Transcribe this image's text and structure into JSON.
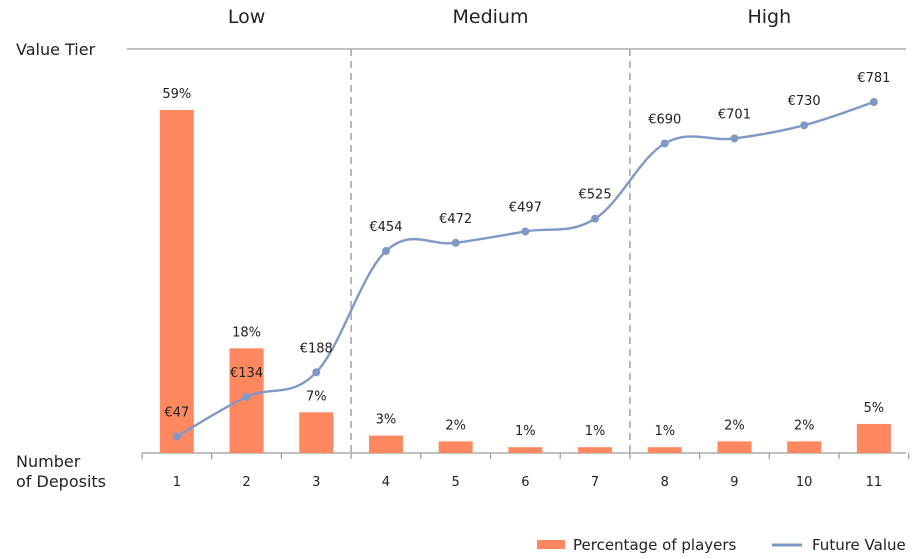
{
  "chart_data": {
    "type": "bar",
    "categories": [
      "1",
      "2",
      "3",
      "4",
      "5",
      "6",
      "7",
      "8",
      "9",
      "10",
      "11"
    ],
    "tiers": [
      {
        "name": "Low",
        "categories": [
          "1",
          "2",
          "3"
        ]
      },
      {
        "name": "Medium",
        "categories": [
          "4",
          "5",
          "6",
          "7"
        ]
      },
      {
        "name": "High",
        "categories": [
          "8",
          "9",
          "10",
          "11"
        ]
      }
    ],
    "series": [
      {
        "name": "Percentage of players",
        "type": "bar",
        "color": "#FF8860",
        "values": [
          59,
          18,
          7,
          3,
          2,
          1,
          1,
          1,
          2,
          2,
          5
        ],
        "labels": [
          "59%",
          "18%",
          "7%",
          "3%",
          "2%",
          "1%",
          "1%",
          "1%",
          "2%",
          "2%",
          "5%"
        ]
      },
      {
        "name": "Future Value",
        "type": "line",
        "color": "#7F98C6",
        "values": [
          47,
          134,
          188,
          454,
          472,
          497,
          525,
          690,
          701,
          730,
          781
        ],
        "labels": [
          "€47",
          "€134",
          "€188",
          "€454",
          "€472",
          "€497",
          "€525",
          "€690",
          "€701",
          "€730",
          "€781"
        ]
      }
    ],
    "top_axis_label": "Value Tier",
    "xlabel_line1": "Number",
    "xlabel_line2": "of Deposits",
    "legend": {
      "placement": "bottom-right"
    },
    "grid": false
  }
}
